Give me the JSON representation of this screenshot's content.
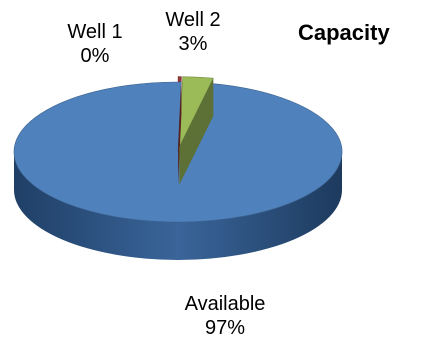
{
  "chart_data": {
    "type": "pie",
    "title": "Capacity",
    "categories": [
      "Well 1",
      "Well 2",
      "Available"
    ],
    "values": [
      0,
      3,
      97
    ],
    "value_labels": [
      "0%",
      "3%",
      "97%"
    ],
    "colors": [
      "#943634",
      "#9bbb59",
      "#4f81bd"
    ],
    "style": "3d-exploded"
  }
}
